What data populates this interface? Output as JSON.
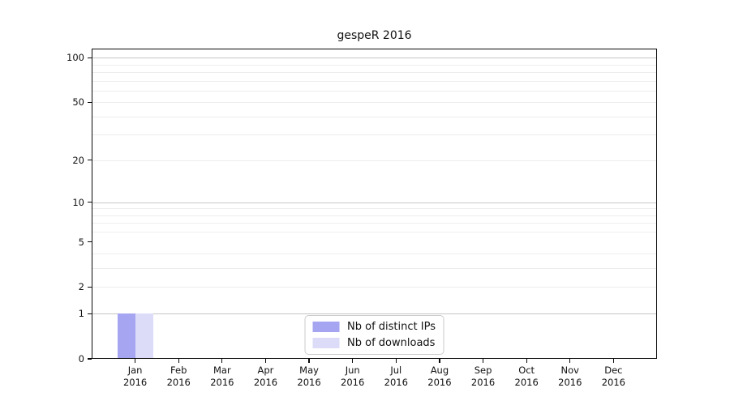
{
  "chart_data": {
    "type": "bar",
    "title": "gespeR 2016",
    "categories": [
      {
        "month": "Jan",
        "year": "2016"
      },
      {
        "month": "Feb",
        "year": "2016"
      },
      {
        "month": "Mar",
        "year": "2016"
      },
      {
        "month": "Apr",
        "year": "2016"
      },
      {
        "month": "May",
        "year": "2016"
      },
      {
        "month": "Jun",
        "year": "2016"
      },
      {
        "month": "Jul",
        "year": "2016"
      },
      {
        "month": "Aug",
        "year": "2016"
      },
      {
        "month": "Sep",
        "year": "2016"
      },
      {
        "month": "Oct",
        "year": "2016"
      },
      {
        "month": "Nov",
        "year": "2016"
      },
      {
        "month": "Dec",
        "year": "2016"
      }
    ],
    "series": [
      {
        "name": "Nb of distinct IPs",
        "color": "#a5a5f2",
        "values": [
          1,
          0,
          0,
          0,
          0,
          0,
          0,
          0,
          0,
          0,
          0,
          0
        ]
      },
      {
        "name": "Nb of downloads",
        "color": "#dcdcf8",
        "values": [
          1,
          0,
          0,
          0,
          0,
          0,
          0,
          0,
          0,
          0,
          0,
          0
        ]
      }
    ],
    "y_axis": {
      "scale": "log10(1+y)",
      "tick_labels": [
        0,
        1,
        2,
        5,
        10,
        20,
        50,
        100
      ],
      "major_gridlines": [
        1,
        10,
        100
      ],
      "minor_gridlines": [
        2,
        3,
        4,
        6,
        7,
        8,
        9,
        20,
        30,
        40,
        50,
        60,
        70,
        80,
        90
      ],
      "y_max": 115
    },
    "xlabel": "",
    "ylabel": "",
    "legend": {
      "position": "lower center",
      "entries": [
        "Nb of distinct IPs",
        "Nb of downloads"
      ]
    },
    "colors": {
      "axis": "#0a0a0a",
      "major_grid": "#c6c6c6",
      "minor_grid": "#ededed",
      "background": "#ffffff"
    }
  }
}
